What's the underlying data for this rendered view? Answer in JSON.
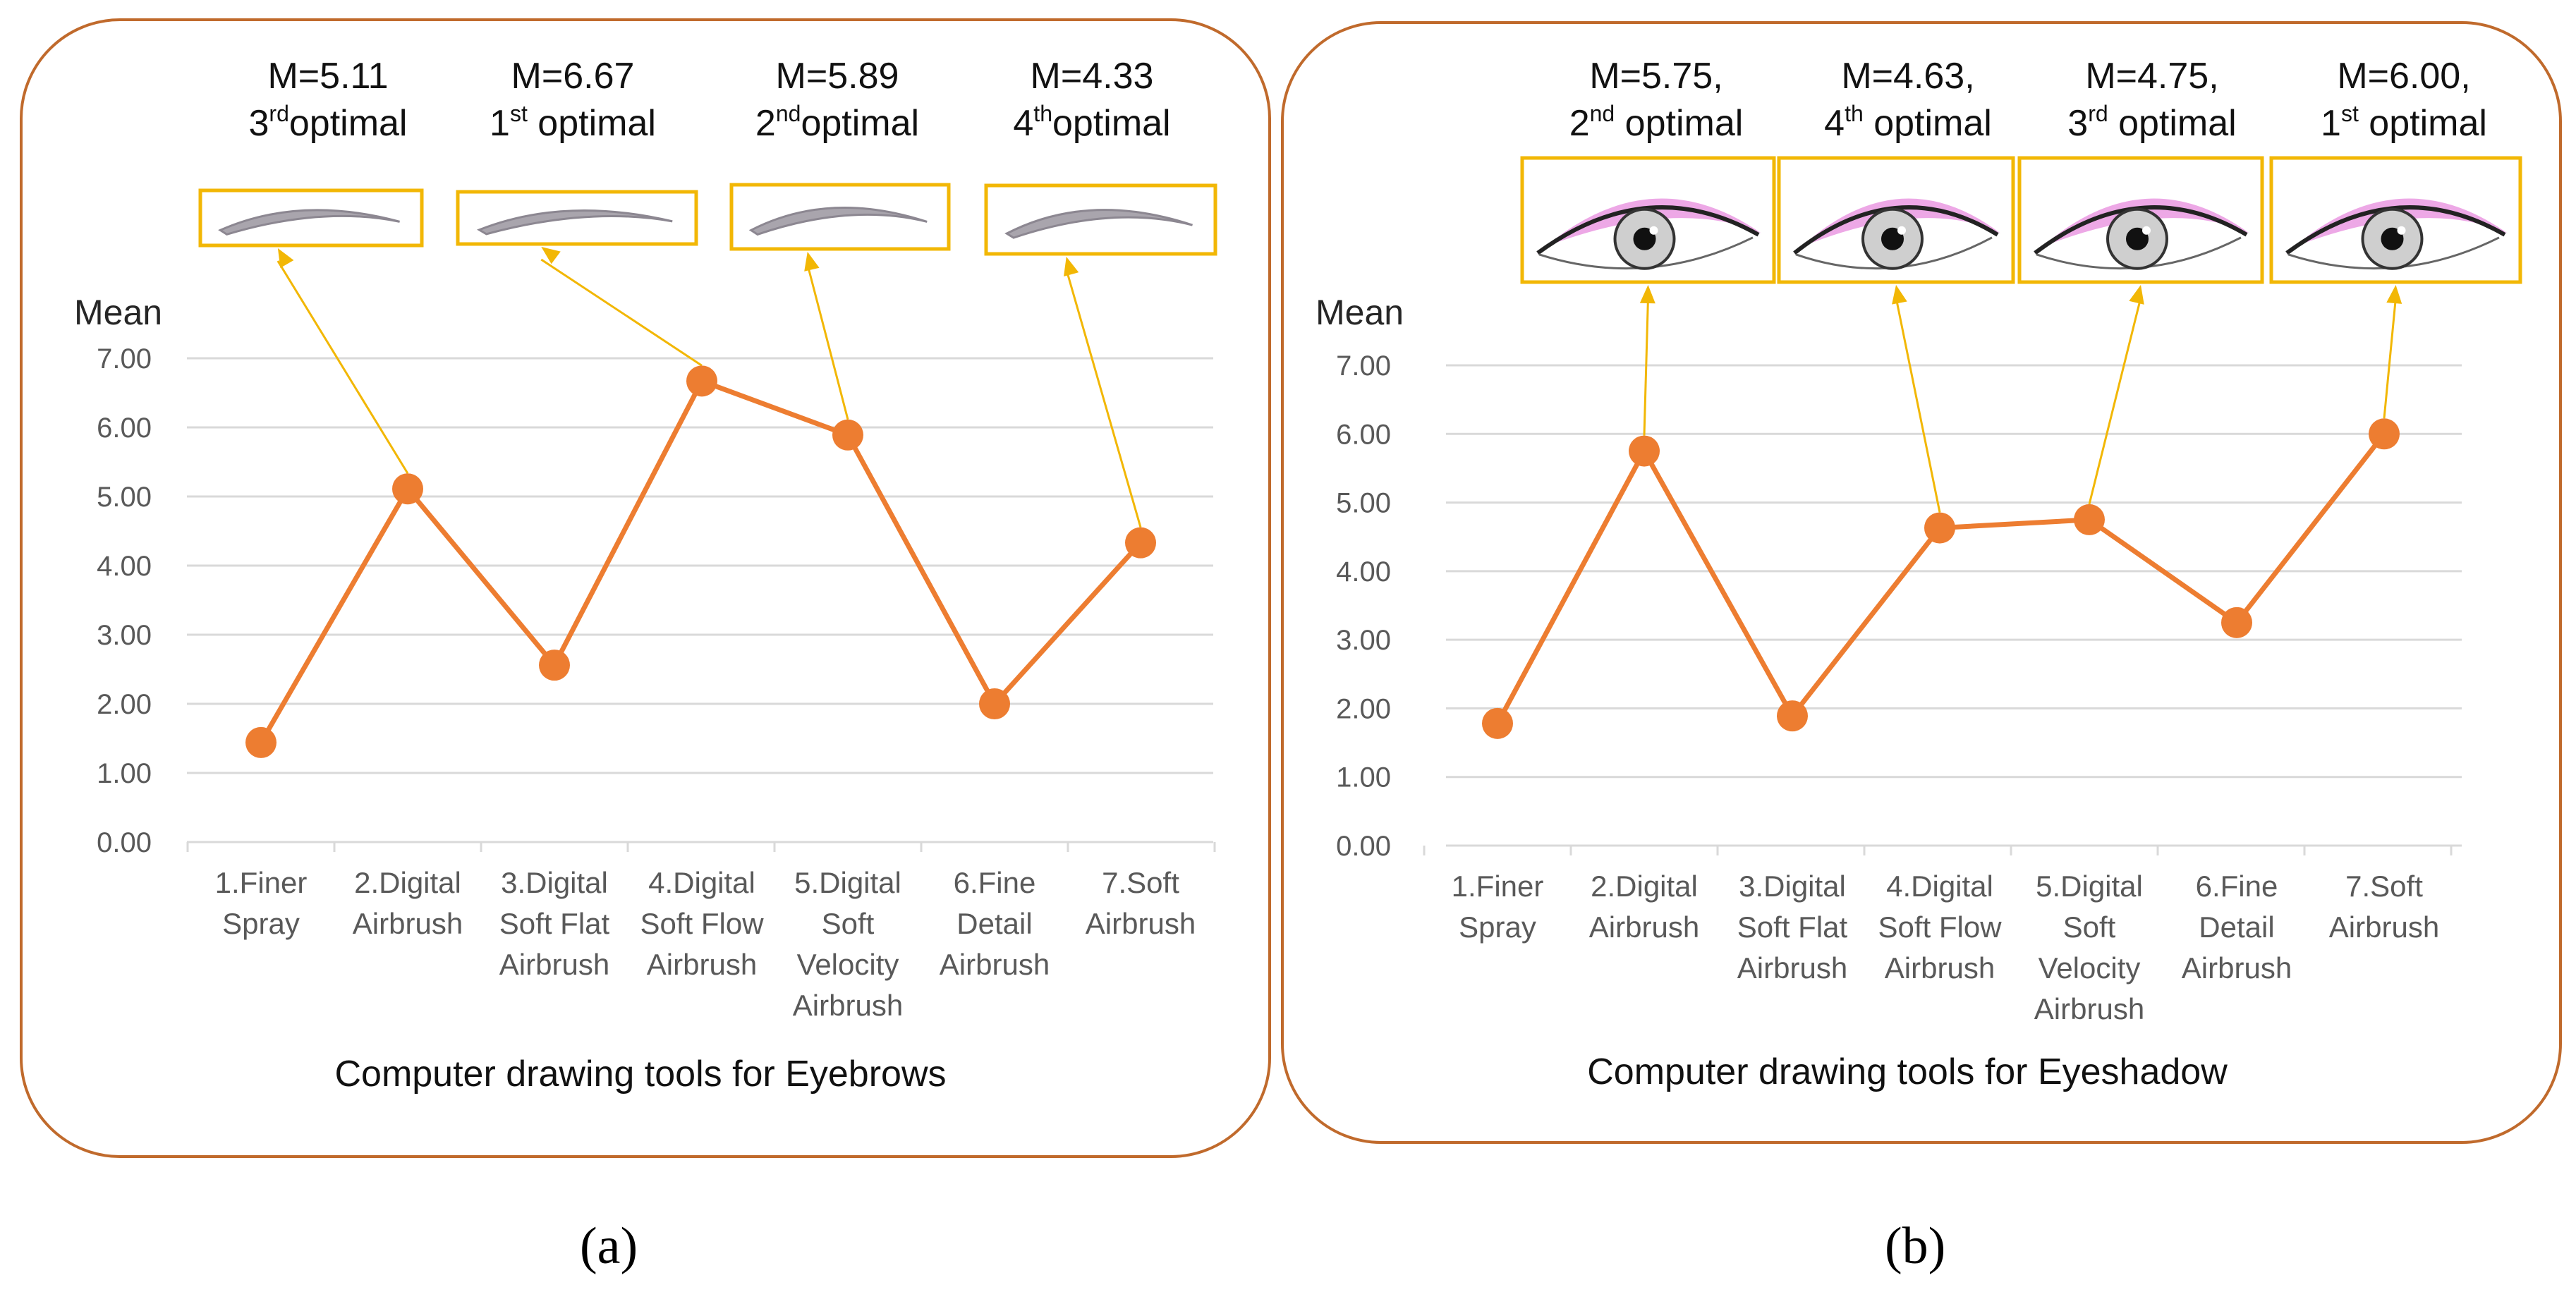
{
  "colors": {
    "line": "#ED7D31",
    "frame": "#C06A2C",
    "callout": "#F2B705",
    "grid": "#D9D9D9",
    "axis_text": "#595959",
    "eyeshadow": "#D63FC8",
    "brow": "#8C8791"
  },
  "chart_data": [
    {
      "type": "line",
      "title": "Computer drawing tools for Eyebrows",
      "ylabel": "Mean",
      "xlabel": "",
      "ylim": [
        0,
        7
      ],
      "yticks": [
        "0.00",
        "1.00",
        "2.00",
        "3.00",
        "4.00",
        "5.00",
        "6.00",
        "7.00"
      ],
      "grid": true,
      "categories": [
        [
          "1.Finer",
          "Spray"
        ],
        [
          "2.Digital",
          "Airbrush"
        ],
        [
          "3.Digital",
          "Soft Flat",
          "Airbrush"
        ],
        [
          "4.Digital",
          "Soft Flow",
          "Airbrush"
        ],
        [
          "5.Digital",
          "Soft",
          "Velocity",
          "Airbrush"
        ],
        [
          "6.Fine",
          "Detail",
          "Airbrush"
        ],
        [
          "7.Soft",
          "Airbrush"
        ]
      ],
      "values": [
        1.44,
        5.11,
        2.56,
        6.67,
        5.89,
        2.0,
        4.33
      ],
      "callout_icon": "eyebrow-stroke",
      "annotations": [
        {
          "index": 1,
          "line1": "M=5.11",
          "rank_num": "3",
          "rank_sup": "rd",
          "rank_word": "optimal"
        },
        {
          "index": 3,
          "line1": "M=6.67",
          "rank_num": "1",
          "rank_sup": "st",
          "rank_word": " optimal"
        },
        {
          "index": 4,
          "line1": "M=5.89",
          "rank_num": "2",
          "rank_sup": "nd",
          "rank_word": "optimal"
        },
        {
          "index": 6,
          "line1": "M=4.33",
          "rank_num": "4",
          "rank_sup": "th",
          "rank_word": "optimal"
        }
      ]
    },
    {
      "type": "line",
      "title": "Computer drawing tools for Eyeshadow",
      "ylabel": "Mean",
      "xlabel": "",
      "ylim": [
        0,
        7
      ],
      "yticks": [
        "0.00",
        "1.00",
        "2.00",
        "3.00",
        "4.00",
        "5.00",
        "6.00",
        "7.00"
      ],
      "grid": true,
      "categories": [
        [
          "1.Finer",
          "Spray"
        ],
        [
          "2.Digital",
          "Airbrush"
        ],
        [
          "3.Digital",
          "Soft Flat",
          "Airbrush"
        ],
        [
          "4.Digital",
          "Soft Flow",
          "Airbrush"
        ],
        [
          "5.Digital",
          "Soft",
          "Velocity",
          "Airbrush"
        ],
        [
          "6.Fine",
          "Detail",
          "Airbrush"
        ],
        [
          "7.Soft",
          "Airbrush"
        ]
      ],
      "values": [
        1.78,
        5.75,
        1.89,
        4.63,
        4.75,
        3.25,
        6.0
      ],
      "callout_icon": "eyeshadow-eye",
      "annotations": [
        {
          "index": 1,
          "line1": "M=5.75,",
          "rank_num": "2",
          "rank_sup": "nd",
          "rank_word": " optimal"
        },
        {
          "index": 3,
          "line1": "M=4.63,",
          "rank_num": "4",
          "rank_sup": "th",
          "rank_word": " optimal"
        },
        {
          "index": 4,
          "line1": "M=4.75,",
          "rank_num": "3",
          "rank_sup": "rd",
          "rank_word": " optimal"
        },
        {
          "index": 6,
          "line1": "M=6.00,",
          "rank_num": "1",
          "rank_sup": "st",
          "rank_word": " optimal"
        }
      ]
    }
  ],
  "captions": [
    "(a)",
    "(b)"
  ]
}
